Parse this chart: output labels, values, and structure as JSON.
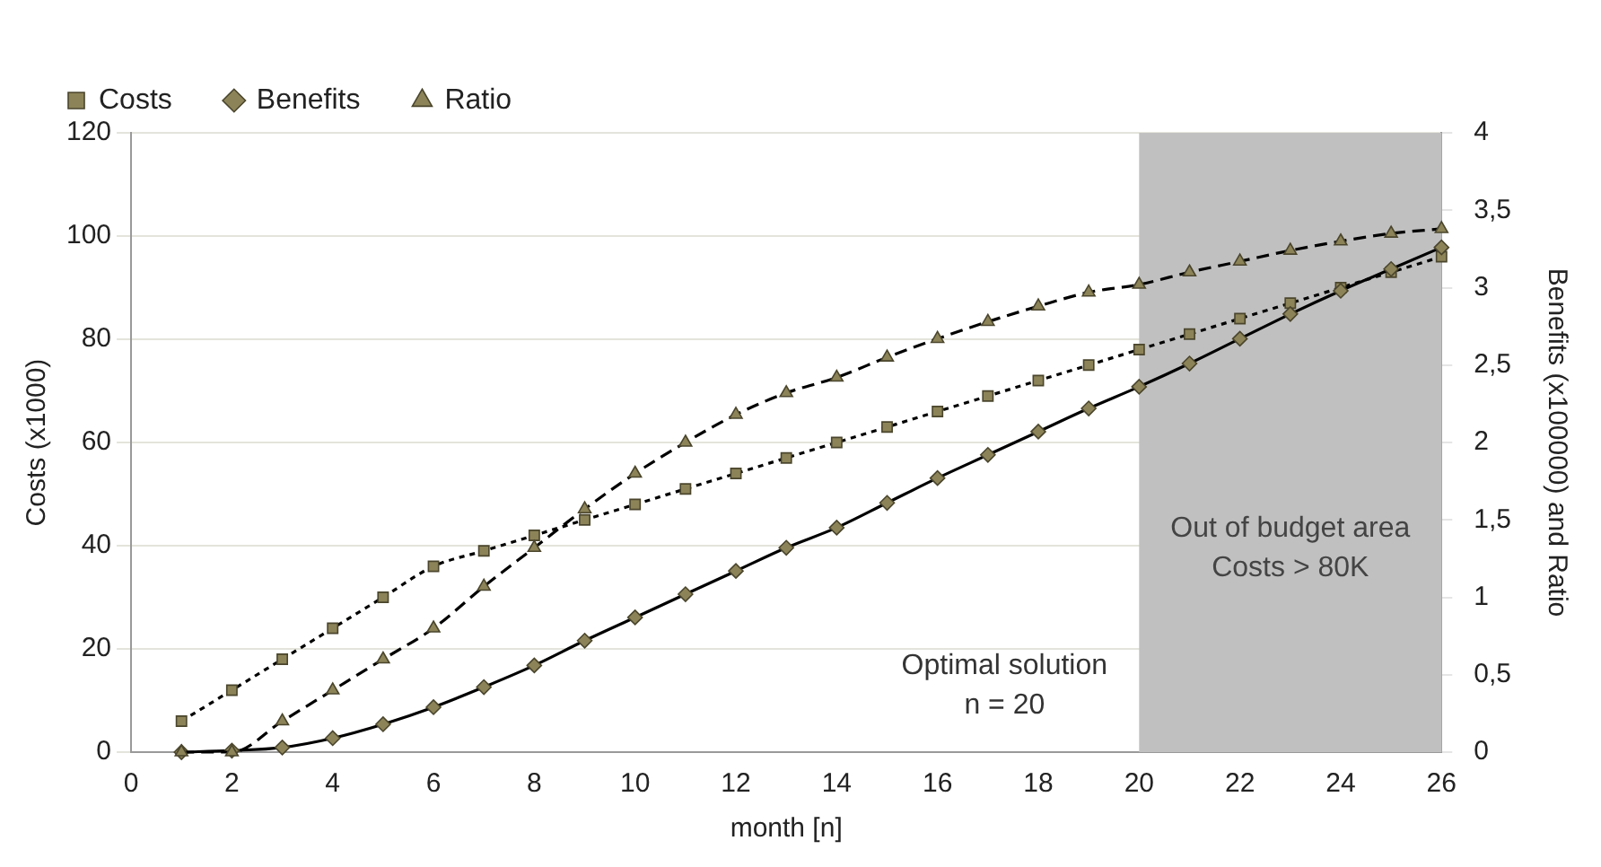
{
  "chart_data": {
    "type": "line",
    "xlabel": "month [n]",
    "ylabel": "Costs (x1000)",
    "y2label": "Benefits (x100000) and Ratio",
    "x": [
      1,
      2,
      3,
      4,
      5,
      6,
      7,
      8,
      9,
      10,
      11,
      12,
      13,
      14,
      15,
      16,
      17,
      18,
      19,
      20,
      21,
      22,
      23,
      24,
      25,
      26
    ],
    "series": [
      {
        "name": "Costs",
        "color": "#000000",
        "marker": "square",
        "line_style": "dotted",
        "values": [
          6,
          12,
          18,
          24,
          30,
          36,
          39,
          42,
          45,
          48,
          51,
          54,
          57,
          60,
          63,
          66,
          69,
          72,
          75,
          78,
          81,
          84,
          87,
          90,
          93,
          96
        ]
      },
      {
        "name": "Benefits",
        "color": "#000000",
        "marker": "diamond",
        "line_style": "solid",
        "axis": "y2",
        "values": [
          0,
          0.01,
          0.03,
          0.09,
          0.18,
          0.29,
          0.42,
          0.56,
          0.72,
          0.87,
          1.02,
          1.17,
          1.32,
          1.45,
          1.61,
          1.77,
          1.92,
          2.07,
          2.22,
          2.36,
          2.51,
          2.67,
          2.83,
          2.98,
          3.12,
          3.26
        ]
      },
      {
        "name": "Ratio",
        "color": "#000000",
        "marker": "triangle",
        "line_style": "dashed",
        "axis": "y2",
        "values": [
          0,
          0,
          0.2,
          0.4,
          0.6,
          0.8,
          1.07,
          1.32,
          1.57,
          1.8,
          2.0,
          2.18,
          2.32,
          2.42,
          2.55,
          2.67,
          2.78,
          2.88,
          2.97,
          3.02,
          3.1,
          3.17,
          3.24,
          3.3,
          3.35,
          3.38
        ]
      }
    ],
    "xlim": [
      0,
      26
    ],
    "xticks": [
      0,
      2,
      4,
      6,
      8,
      10,
      12,
      14,
      16,
      18,
      20,
      22,
      24,
      26
    ],
    "ylim": [
      0,
      120
    ],
    "yticks": [
      0,
      20,
      40,
      60,
      80,
      100,
      120
    ],
    "y2lim": [
      0,
      4
    ],
    "y2ticks": [
      0,
      {
        "value": 0.5,
        "label": "0,5"
      },
      1,
      {
        "value": 1.5,
        "label": "1,5"
      },
      2,
      {
        "value": 2.5,
        "label": "2,5"
      },
      3,
      {
        "value": 3.5,
        "label": "3,5"
      },
      4
    ],
    "bands": [
      {
        "axis": "x",
        "from": 20,
        "to": 26,
        "label": "Out of budget area\nCosts > 80K",
        "color": "#c0c0c0"
      }
    ],
    "annotations": [
      "Optimal solution\nn = 20"
    ],
    "grid": "y",
    "legend": "top left"
  }
}
